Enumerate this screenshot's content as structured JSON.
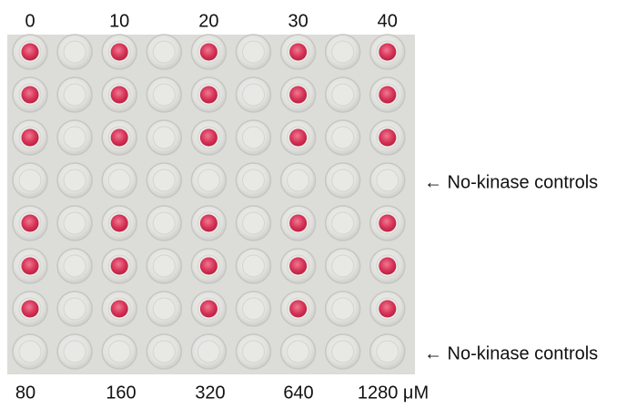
{
  "top_labels": [
    "0",
    "10",
    "20",
    "30",
    "40"
  ],
  "bottom_labels": [
    "80",
    "160",
    "320",
    "640",
    "1280 μM"
  ],
  "annotations": [
    "← No-kinase controls",
    "← No-kinase controls"
  ]
}
